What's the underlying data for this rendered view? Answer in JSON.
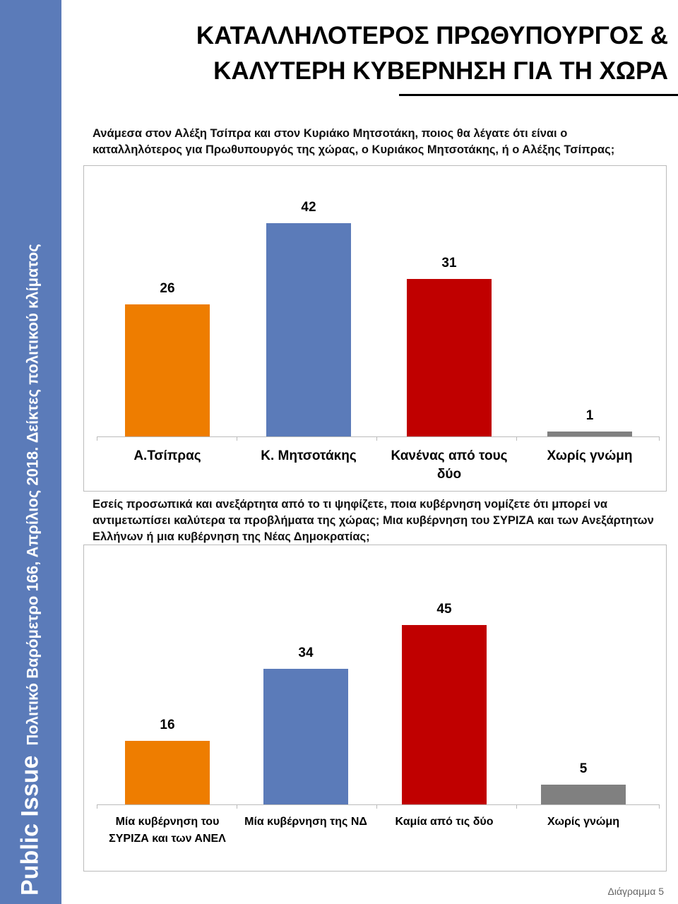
{
  "sidebar": {
    "brand": "Public Issue",
    "subtitle": "Πολιτικό Βαρόμετρο 166, Απρίλιος 2018. Δείκτες πολιτικού κλίματος"
  },
  "title": {
    "line1": "ΚΑΤΑΛΛΗΛΟΤΕΡΟΣ ΠΡΩΘΥΠΟΥΡΓΟΣ &",
    "line2": "ΚΑΛΥΤΕΡΗ ΚΥΒΕΡΝΗΣΗ ΓΙΑ ΤΗ ΧΩΡΑ"
  },
  "footer": "Διάγραμμα 5",
  "chart_data": [
    {
      "type": "bar",
      "title": "Ανάμεσα στον Αλέξη Τσίπρα και στον Κυριάκο Μητσοτάκη, ποιος θα λέγατε ότι είναι ο καταλληλότερος για Πρωθυπουργός της χώρας, ο Κυριάκος Μητσοτάκης, ή ο Αλέξης Τσίπρας;",
      "categories": [
        "Α.Τσίπρας",
        "Κ. Μητσοτάκης",
        "Κανένας από τους δύο",
        "Χωρίς γνώμη"
      ],
      "values": [
        26,
        42,
        31,
        1
      ],
      "colors": [
        "#ee7d00",
        "#5b7bb9",
        "#c00000",
        "#808080"
      ],
      "grid": false
    },
    {
      "type": "bar",
      "title": "Εσείς προσωπικά και ανεξάρτητα από το τι ψηφίζετε, ποια κυβέρνηση νομίζετε ότι μπορεί να αντιμετωπίσει καλύτερα τα προβλήματα της χώρας; Μια κυβέρνηση του ΣΥΡΙΖΑ και των Ανεξάρτητων Ελλήνων ή μια κυβέρνηση της Νέας Δημοκρατίας;",
      "categories": [
        "Μία κυβέρνηση του ΣΥΡΙΖΑ και των ΑΝΕΛ",
        "Μία κυβέρνηση της ΝΔ",
        "Καμία από τις δύο",
        "Χωρίς γνώμη"
      ],
      "values": [
        16,
        34,
        45,
        5
      ],
      "colors": [
        "#ee7d00",
        "#5b7bb9",
        "#c00000",
        "#808080"
      ],
      "grid": false
    }
  ]
}
